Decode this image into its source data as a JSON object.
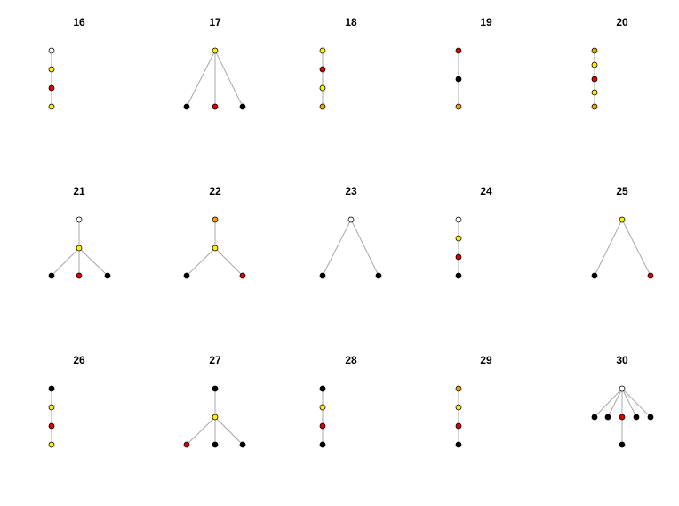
{
  "colors": {
    "W": "#ffffff",
    "Y": "#ffee00",
    "R": "#dd0000",
    "O": "#f0a000",
    "K": "#000000"
  },
  "panels": [
    {
      "title": "16",
      "nodes": [
        "W",
        "Y",
        "R",
        "Y"
      ],
      "edges": [
        [
          0,
          1
        ],
        [
          1,
          2
        ],
        [
          2,
          3
        ]
      ]
    },
    {
      "title": "17",
      "nodes": [
        "Y",
        "K",
        "R",
        "K"
      ],
      "edges": [
        [
          0,
          1
        ],
        [
          0,
          2
        ],
        [
          0,
          3
        ]
      ]
    },
    {
      "title": "18",
      "nodes": [
        "Y",
        "R",
        "Y",
        "O"
      ],
      "edges": [
        [
          0,
          1
        ],
        [
          1,
          2
        ],
        [
          2,
          3
        ]
      ]
    },
    {
      "title": "19",
      "nodes": [
        "R",
        "K",
        "O"
      ],
      "edges": [
        [
          0,
          1
        ],
        [
          1,
          2
        ]
      ]
    },
    {
      "title": "20",
      "nodes": [
        "O",
        "Y",
        "R",
        "Y",
        "O"
      ],
      "edges": [
        [
          0,
          1
        ],
        [
          1,
          2
        ],
        [
          2,
          3
        ],
        [
          3,
          4
        ]
      ]
    },
    {
      "title": "21",
      "nodes": [
        "W",
        "Y",
        "K",
        "R",
        "K"
      ],
      "edges": [
        [
          0,
          1
        ],
        [
          1,
          2
        ],
        [
          1,
          3
        ],
        [
          1,
          4
        ]
      ]
    },
    {
      "title": "22",
      "nodes": [
        "O",
        "Y",
        "K",
        "R"
      ],
      "edges": [
        [
          0,
          1
        ],
        [
          1,
          2
        ],
        [
          1,
          3
        ]
      ]
    },
    {
      "title": "23",
      "nodes": [
        "W",
        "K",
        "K"
      ],
      "edges": [
        [
          0,
          1
        ],
        [
          0,
          2
        ]
      ]
    },
    {
      "title": "24",
      "nodes": [
        "W",
        "Y",
        "R",
        "K"
      ],
      "edges": [
        [
          0,
          1
        ],
        [
          1,
          2
        ],
        [
          2,
          3
        ]
      ]
    },
    {
      "title": "25",
      "nodes": [
        "Y",
        "K",
        "R"
      ],
      "edges": [
        [
          0,
          1
        ],
        [
          0,
          2
        ]
      ]
    },
    {
      "title": "26",
      "nodes": [
        "K",
        "Y",
        "R",
        "Y"
      ],
      "edges": [
        [
          0,
          1
        ],
        [
          1,
          2
        ],
        [
          2,
          3
        ]
      ]
    },
    {
      "title": "27",
      "nodes": [
        "K",
        "Y",
        "R",
        "K",
        "K"
      ],
      "edges": [
        [
          0,
          1
        ],
        [
          1,
          2
        ],
        [
          1,
          3
        ],
        [
          1,
          4
        ]
      ]
    },
    {
      "title": "28",
      "nodes": [
        "K",
        "Y",
        "R",
        "K"
      ],
      "edges": [
        [
          0,
          1
        ],
        [
          1,
          2
        ],
        [
          2,
          3
        ]
      ]
    },
    {
      "title": "29",
      "nodes": [
        "O",
        "Y",
        "R",
        "K"
      ],
      "edges": [
        [
          0,
          1
        ],
        [
          1,
          2
        ],
        [
          2,
          3
        ]
      ]
    },
    {
      "title": "30",
      "nodes": [
        "W",
        "K",
        "K",
        "R",
        "K",
        "K",
        "K"
      ],
      "edges": [
        [
          0,
          1
        ],
        [
          0,
          2
        ],
        [
          0,
          3
        ],
        [
          0,
          4
        ],
        [
          0,
          5
        ],
        [
          0,
          6
        ]
      ]
    }
  ]
}
